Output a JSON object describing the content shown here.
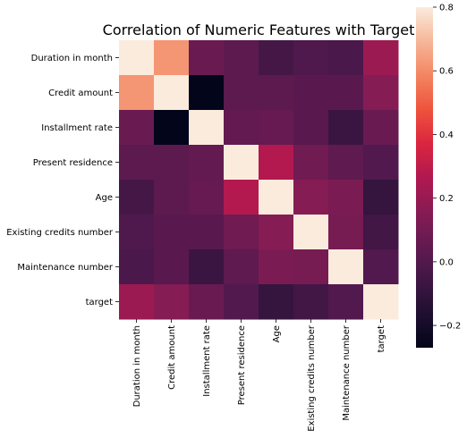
{
  "chart_data": {
    "type": "heatmap",
    "title": "Correlation of Numeric Features with Target",
    "labels": [
      "Duration in month",
      "Credit amount",
      "Installment rate",
      "Present residence",
      "Age",
      "Existing credits number",
      "Maintenance number",
      "target"
    ],
    "matrix": [
      [
        1.0,
        0.62,
        0.07,
        0.03,
        -0.04,
        -0.01,
        -0.02,
        0.21
      ],
      [
        0.62,
        1.0,
        -0.27,
        0.03,
        0.03,
        0.02,
        0.02,
        0.15
      ],
      [
        0.07,
        -0.27,
        1.0,
        0.05,
        0.06,
        0.02,
        -0.07,
        0.07
      ],
      [
        0.03,
        0.03,
        0.05,
        1.0,
        0.27,
        0.09,
        0.04,
        0.0
      ],
      [
        -0.04,
        0.03,
        0.06,
        0.27,
        1.0,
        0.15,
        0.12,
        -0.09
      ],
      [
        -0.01,
        0.02,
        0.02,
        0.09,
        0.15,
        1.0,
        0.11,
        -0.05
      ],
      [
        -0.02,
        0.02,
        -0.07,
        0.04,
        0.12,
        0.11,
        1.0,
        0.0
      ],
      [
        0.21,
        0.15,
        0.07,
        0.0,
        -0.09,
        -0.05,
        0.0,
        1.0
      ]
    ],
    "colorbar": {
      "vmin": -0.27,
      "vmax": 0.8,
      "ticks": [
        -0.2,
        0.0,
        0.2,
        0.4,
        0.6,
        0.8
      ],
      "tick_labels": [
        "−0.2",
        "0.0",
        "0.2",
        "0.4",
        "0.6",
        "0.8"
      ],
      "colormap": "rocket"
    },
    "grid": false
  }
}
